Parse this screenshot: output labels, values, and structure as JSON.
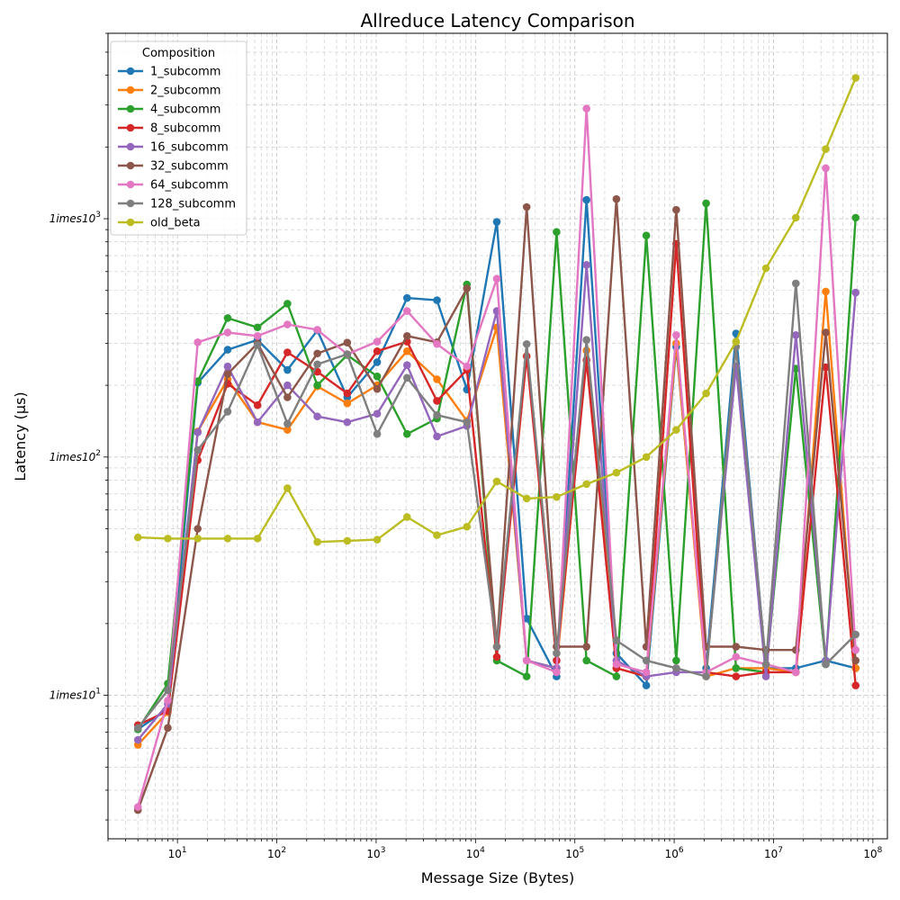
{
  "chart_data": {
    "type": "line",
    "title": "Allreduce Latency Comparison",
    "xlabel": "Message Size (Bytes)",
    "ylabel": "Latency (μs)",
    "x_scale": "log",
    "y_scale": "log",
    "xlim": [
      2,
      140000000
    ],
    "ylim": [
      2.5,
      6000
    ],
    "grid": true,
    "grid_style": "dashed",
    "legend": {
      "title": "Composition",
      "placement": "top-left"
    },
    "x_ticks": [
      {
        "value": 10,
        "base": "10",
        "exp": "1"
      },
      {
        "value": 100,
        "base": "10",
        "exp": "2"
      },
      {
        "value": 1000,
        "base": "10",
        "exp": "3"
      },
      {
        "value": 10000,
        "base": "10",
        "exp": "4"
      },
      {
        "value": 100000,
        "base": "10",
        "exp": "5"
      },
      {
        "value": 1000000,
        "base": "10",
        "exp": "6"
      },
      {
        "value": 10000000,
        "base": "10",
        "exp": "7"
      },
      {
        "value": 100000000,
        "base": "10",
        "exp": "8"
      }
    ],
    "y_ticks": [
      {
        "value": 10,
        "label": "1imes10",
        "exp": "1"
      },
      {
        "value": 100,
        "label": "1imes10",
        "exp": "2"
      },
      {
        "value": 1000,
        "label": "1imes10",
        "exp": "3"
      }
    ],
    "x": [
      4,
      8,
      16,
      32,
      64,
      128,
      256,
      512,
      1024,
      2048,
      4096,
      8192,
      16384,
      32768,
      65536,
      131072,
      262144,
      524288,
      1048576,
      2097152,
      4194304,
      8388608,
      16777216,
      33554432,
      67108864
    ],
    "series": [
      {
        "name": "1_subcomm",
        "color": "#1f77b4",
        "values": [
          7.2,
          8.8,
          205,
          282,
          310,
          232,
          340,
          178,
          250,
          465,
          455,
          192,
          970,
          21,
          12,
          1200,
          15,
          11,
          290,
          13,
          330,
          13,
          13,
          14,
          13
        ]
      },
      {
        "name": "2_subcomm",
        "color": "#ff7f0e",
        "values": [
          6.2,
          8.5,
          128,
          212,
          140,
          130,
          198,
          168,
          200,
          278,
          212,
          142,
          350,
          14,
          13,
          280,
          13,
          12,
          300,
          12,
          13,
          13,
          12.5,
          495,
          13
        ]
      },
      {
        "name": "4_subcomm",
        "color": "#2ca02c",
        "values": [
          7.2,
          11.2,
          208,
          383,
          350,
          440,
          200,
          268,
          218,
          125,
          145,
          530,
          14,
          12,
          880,
          14,
          12,
          850,
          14,
          1160,
          13,
          12.5,
          235,
          13.5,
          1010
        ]
      },
      {
        "name": "8_subcomm",
        "color": "#d62728",
        "values": [
          7.5,
          8.6,
          97,
          203,
          165,
          275,
          228,
          185,
          278,
          305,
          172,
          232,
          14.5,
          265,
          14,
          255,
          13,
          12,
          785,
          12.5,
          12,
          12.5,
          12.5,
          238,
          11
        ]
      },
      {
        "name": "16_subcomm",
        "color": "#9467bd",
        "values": [
          6.5,
          9.2,
          127,
          240,
          140,
          200,
          148,
          140,
          152,
          243,
          122,
          135,
          410,
          14,
          13,
          640,
          14,
          12,
          12.5,
          12.5,
          240,
          12,
          325,
          14,
          490
        ]
      },
      {
        "name": "32_subcomm",
        "color": "#8c564b",
        "values": [
          3.3,
          7.3,
          50,
          223,
          300,
          178,
          272,
          302,
          193,
          322,
          303,
          510,
          16,
          1120,
          16,
          16,
          1210,
          16,
          1090,
          16,
          16,
          15.5,
          15.5,
          333,
          14
        ]
      },
      {
        "name": "64_subcomm",
        "color": "#e377c2",
        "values": [
          3.4,
          9.5,
          303,
          333,
          322,
          360,
          342,
          270,
          305,
          410,
          298,
          240,
          560,
          14,
          12.5,
          2900,
          13.5,
          12.5,
          325,
          12.5,
          14.5,
          13.5,
          12.5,
          1630,
          15.5
        ]
      },
      {
        "name": "128_subcomm",
        "color": "#7f7f7f",
        "values": [
          7.3,
          10.5,
          107,
          155,
          295,
          138,
          245,
          270,
          125,
          215,
          150,
          140,
          16,
          298,
          15,
          310,
          17,
          14,
          13,
          12,
          290,
          13.5,
          535,
          13.5,
          18
        ]
      },
      {
        "name": "old_beta",
        "color": "#bcbd22",
        "values": [
          46,
          45.5,
          45.5,
          45.5,
          45.5,
          74,
          44,
          44.5,
          45,
          56,
          47,
          51,
          79,
          67,
          68,
          77,
          86,
          100,
          130,
          185,
          305,
          620,
          1010,
          1960,
          3900
        ]
      }
    ]
  }
}
